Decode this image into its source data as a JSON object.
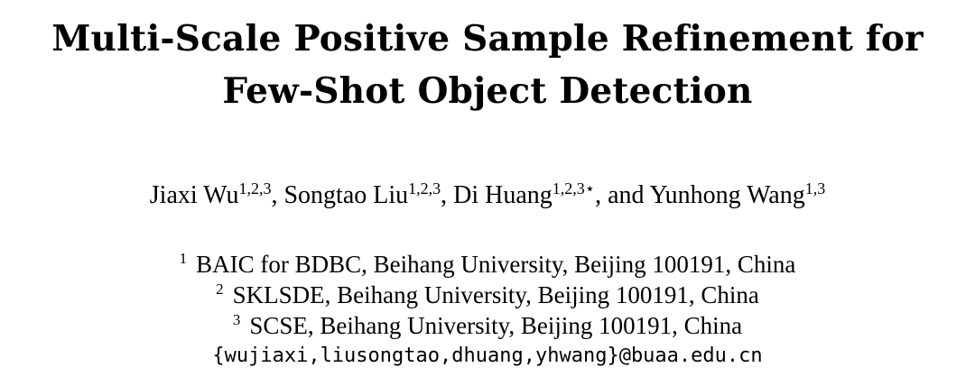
{
  "title": {
    "line1": "Multi-Scale Positive Sample Refinement for",
    "line2": "Few-Shot Object Detection"
  },
  "authors": [
    {
      "name": "Jiaxi Wu",
      "marks": "1,2,3",
      "sep": ", "
    },
    {
      "name": "Songtao Liu",
      "marks": "1,2,3",
      "sep": ", "
    },
    {
      "name": "Di Huang",
      "marks": "1,2,3⋆",
      "sep": ", and "
    },
    {
      "name": "Yunhong Wang",
      "marks": "1,3",
      "sep": ""
    }
  ],
  "affiliations": [
    {
      "mark": "1",
      "text": "BAIC for BDBC, Beihang University, Beijing 100191, China"
    },
    {
      "mark": "2",
      "text": "SKLSDE, Beihang University, Beijing 100191, China"
    },
    {
      "mark": "3",
      "text": "SCSE, Beihang University, Beijing 100191, China"
    }
  ],
  "email": "{wujiaxi,liusongtao,dhuang,yhwang}@buaa.edu.cn"
}
